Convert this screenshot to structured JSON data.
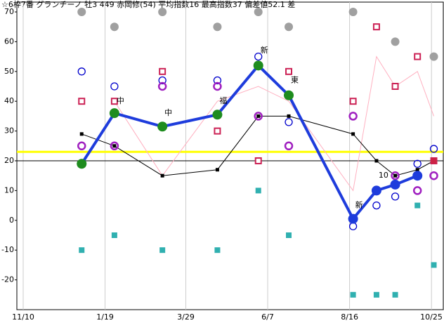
{
  "chart_data": {
    "type": "line",
    "title": "☆6枠7番 グランチーノ 牡3 449 赤岡修(54) 平均指数16 最高指数37 偏差値52.1 差",
    "x": [
      50,
      78,
      119,
      166,
      201,
      227,
      282,
      302,
      318,
      337,
      351
    ],
    "xlim": [
      -5.4,
      355.5
    ],
    "xticks": [
      {
        "value": 0,
        "label": "11/10"
      },
      {
        "value": 70,
        "label": "1/19"
      },
      {
        "value": 139,
        "label": "3/29"
      },
      {
        "value": 209,
        "label": "6/7"
      },
      {
        "value": 279,
        "label": "8/16"
      },
      {
        "value": 349,
        "label": "10/25"
      }
    ],
    "ylim": [
      -30,
      70
    ],
    "yticks": [
      -20,
      -10,
      0,
      10,
      20,
      30,
      40,
      50,
      60,
      70
    ],
    "xgrid": true,
    "reference_lines": [
      {
        "value": 20,
        "color": "#000000"
      },
      {
        "value": 23,
        "color": "#ffff00"
      }
    ],
    "series": [
      {
        "color": "#a0a0a0",
        "marker": "dot",
        "line": false,
        "values": [
          70,
          65,
          70,
          65,
          70,
          65,
          70,
          null,
          60,
          null,
          55
        ]
      },
      {
        "color": "#30b0b0",
        "marker": "square-filled",
        "line": false,
        "values": [
          -10,
          -5,
          -10,
          -10,
          10,
          -5,
          -25,
          -25,
          -25,
          5,
          -15
        ]
      },
      {
        "color": "#ffb0c0",
        "marker": "none",
        "line": true,
        "width": 1,
        "values": [
          null,
          40,
          15,
          40,
          45,
          40,
          10,
          55,
          45,
          50,
          35
        ]
      },
      {
        "color": "#000000",
        "marker": "tiny-square",
        "line": true,
        "width": 1,
        "values": [
          29,
          25,
          15,
          17,
          35,
          35,
          29,
          20,
          15,
          17,
          20
        ]
      },
      {
        "color": "#cc2255",
        "marker": "square-open",
        "line": false,
        "values": [
          40,
          40,
          50,
          30,
          20,
          50,
          40,
          65,
          45,
          55,
          20
        ]
      },
      {
        "color": "#0000cc",
        "marker": "circle-open",
        "line": false,
        "values": [
          50,
          45,
          47,
          47,
          55,
          33,
          -2,
          5,
          8,
          19,
          24
        ]
      },
      {
        "color": "#a020c0",
        "marker": "ring",
        "line": false,
        "values": [
          25,
          25,
          45,
          45,
          35,
          25,
          35,
          10,
          15,
          10,
          15
        ]
      },
      {
        "color": "#1e3cdc",
        "marker": "big-dot",
        "line": true,
        "width": 4,
        "values": [
          19,
          36,
          31.5,
          35.5,
          52,
          42,
          0.5,
          10,
          12,
          15,
          null
        ],
        "marker_colors": [
          "#1e8c1e",
          "#1e8c1e",
          "#1e8c1e",
          "#1e8c1e",
          "#1e8c1e",
          "#1e8c1e",
          "#1e3cdc",
          "#1e3cdc",
          "#1e3cdc",
          "#1e3cdc",
          "#1e3cdc"
        ]
      },
      {
        "color": "#cc2244",
        "marker": "square-filled",
        "line": false,
        "values": [
          null,
          null,
          null,
          null,
          null,
          null,
          null,
          null,
          null,
          null,
          20
        ]
      }
    ],
    "annotations": [
      {
        "text": "中",
        "x": 78,
        "y": 40
      },
      {
        "text": "中",
        "x": 119,
        "y": 36
      },
      {
        "text": "福",
        "x": 166,
        "y": 40
      },
      {
        "text": "新",
        "x": 201,
        "y": 57
      },
      {
        "text": "東",
        "x": 227,
        "y": 47
      },
      {
        "text": "新",
        "x": 282,
        "y": 5
      },
      {
        "text": "10",
        "x": 302,
        "y": 15
      }
    ]
  }
}
